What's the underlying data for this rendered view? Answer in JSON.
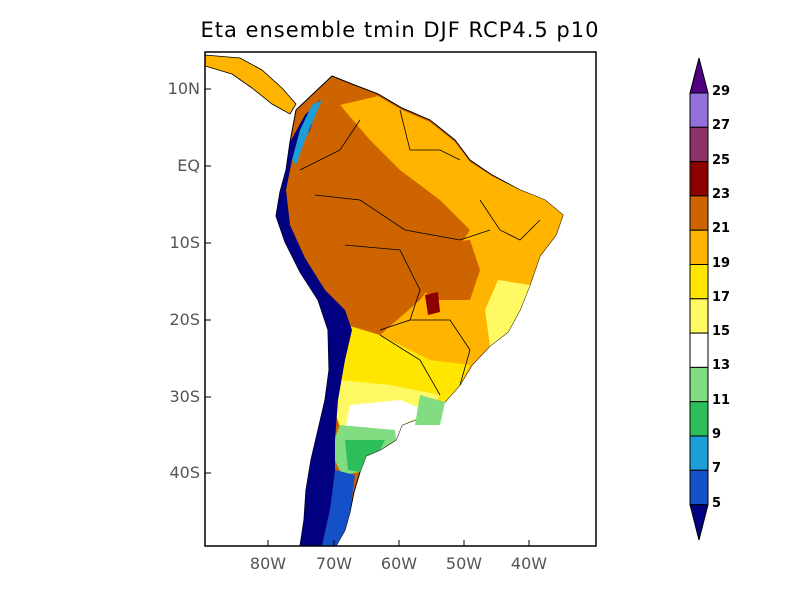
{
  "title": "Eta ensemble tmin DJF RCP4.5 p10",
  "lat_labels": [
    "10N",
    "EQ",
    "10S",
    "20S",
    "30S",
    "40S"
  ],
  "lon_labels": [
    "80W",
    "70W",
    "60W",
    "50W",
    "40W"
  ],
  "colorbar": {
    "labels": [
      "29",
      "27",
      "25",
      "23",
      "21",
      "19",
      "17",
      "15",
      "13",
      "11",
      "9",
      "7",
      "5"
    ],
    "colors": [
      "#9470dc",
      "#8c3468",
      "#8c0000",
      "#cd6400",
      "#ffb400",
      "#ffe600",
      "#fffa64",
      "#ffffff",
      "#82dc82",
      "#2cbe5a",
      "#1e9ed8",
      "#1450c8"
    ],
    "over_color": "#500080",
    "under_color": "#000080"
  }
}
